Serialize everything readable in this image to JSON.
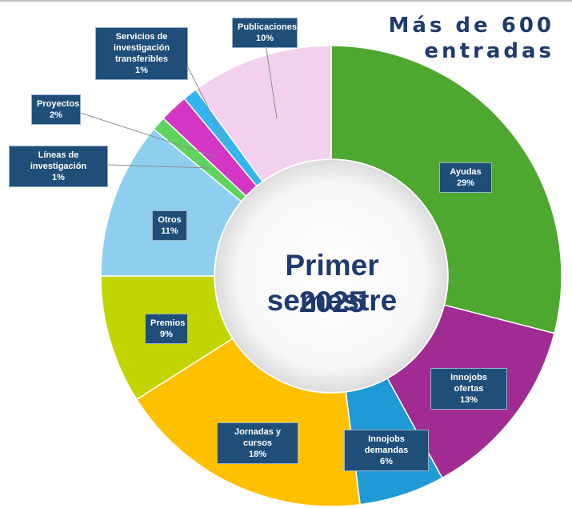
{
  "headline": {
    "line1": "Más de 600",
    "line2": "entradas"
  },
  "center": {
    "line1": "Primer semestre",
    "line2": "2025"
  },
  "chart_data": {
    "type": "pie",
    "title": "",
    "hole": true,
    "slices": [
      {
        "label": "Ayudas",
        "value": 29,
        "value_label": "29%",
        "color": "#4ea72e"
      },
      {
        "label": "Innojobs ofertas",
        "value": 13,
        "value_label": "13%",
        "color": "#a02b93"
      },
      {
        "label": "Innojobs demandas",
        "value": 6,
        "value_label": "6%",
        "color": "#1f9ad6"
      },
      {
        "label": "Jornadas y cursos",
        "value": 18,
        "value_label": "18%",
        "color": "#ffc000"
      },
      {
        "label": "Premios",
        "value": 9,
        "value_label": "9%",
        "color": "#c2d500"
      },
      {
        "label": "Otros",
        "value": 11,
        "value_label": "11%",
        "color": "#8ecff0"
      },
      {
        "label": "Líneas de investigación",
        "value": 1,
        "value_label": "1%",
        "color": "#5fd35f"
      },
      {
        "label": "Proyectos",
        "value": 2,
        "value_label": "2%",
        "color": "#d336c4"
      },
      {
        "label": "Servicios de investigación transferibles",
        "value": 1,
        "value_label": "1%",
        "color": "#33b5f0"
      },
      {
        "label": "Publicaciones",
        "value": 10,
        "value_label": "10%",
        "color": "#f2d0ee"
      }
    ]
  }
}
